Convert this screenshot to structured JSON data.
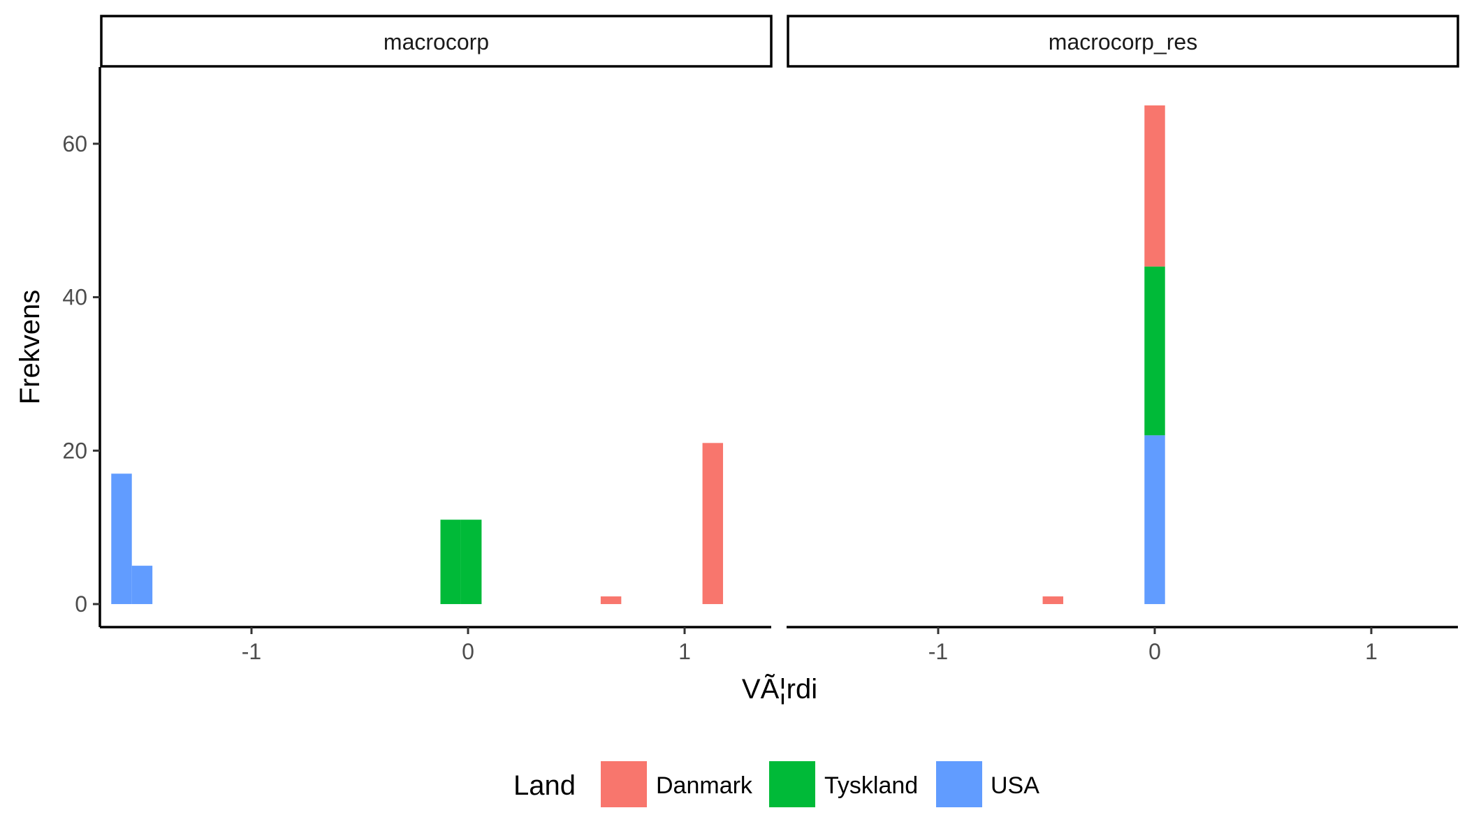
{
  "chart_data": {
    "type": "bar",
    "subtype": "stacked-histogram-faceted",
    "xlabel": "VÃ¦rdi",
    "ylabel": "Frekvens",
    "xlim": [
      -1.7,
      1.4
    ],
    "ylim": [
      -3,
      70
    ],
    "x_ticks": [
      -1,
      0,
      1
    ],
    "y_ticks": [
      0,
      20,
      40,
      60
    ],
    "x_tick_labels": [
      "-1",
      "0",
      "1"
    ],
    "y_tick_labels": [
      "0",
      "20",
      "40",
      "60"
    ],
    "bin_width": 0.095,
    "grid": false,
    "legend": {
      "title": "Land",
      "position": "bottom",
      "entries": [
        {
          "name": "Danmark",
          "color": "#F8766D"
        },
        {
          "name": "Tyskland",
          "color": "#00BA38"
        },
        {
          "name": "USA",
          "color": "#619CFF"
        }
      ]
    },
    "facets": [
      {
        "label": "macrocorp",
        "bars": [
          {
            "x": -1.6,
            "series": "USA",
            "y0": 0,
            "y1": 17
          },
          {
            "x": -1.505,
            "series": "USA",
            "y0": 0,
            "y1": 5
          },
          {
            "x": -0.08,
            "series": "Tyskland",
            "y0": 0,
            "y1": 11
          },
          {
            "x": 0.015,
            "series": "Tyskland",
            "y0": 0,
            "y1": 11
          },
          {
            "x": 0.66,
            "series": "Danmark",
            "y0": 0,
            "y1": 1
          },
          {
            "x": 1.13,
            "series": "Danmark",
            "y0": 0,
            "y1": 21
          }
        ]
      },
      {
        "label": "macrocorp_res",
        "bars": [
          {
            "x": -0.47,
            "series": "Danmark",
            "y0": 0,
            "y1": 1
          },
          {
            "x": 0.0,
            "series": "USA",
            "y0": 0,
            "y1": 22
          },
          {
            "x": 0.0,
            "series": "Tyskland",
            "y0": 22,
            "y1": 44
          },
          {
            "x": 0.0,
            "series": "Danmark",
            "y0": 44,
            "y1": 65
          }
        ]
      }
    ]
  }
}
